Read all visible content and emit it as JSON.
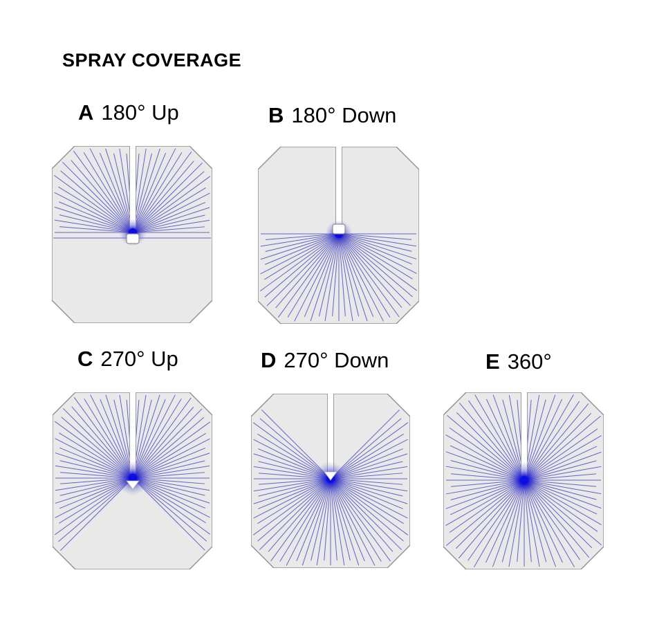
{
  "title": "SPRAY COVERAGE",
  "colors": {
    "spray_line": "#5353c4",
    "spray_core": "#0c0ce4",
    "panel_fill": "#e9e9e9",
    "panel_stroke": "#8f8f8f",
    "pipe_fill": "#ffffff",
    "pipe_stroke": "#9a9a9a",
    "text": "#000000"
  },
  "panels": [
    {
      "id": "A",
      "letter": "A",
      "caption": "180° Up",
      "coverage_deg": 180,
      "direction": "Up",
      "fan": {
        "start_deg": 0,
        "end_deg": 180,
        "step_deg": 4.5
      },
      "nozzle": "rounded-rect-below",
      "full_width_boundary_line": true
    },
    {
      "id": "B",
      "letter": "B",
      "caption": "180° Down",
      "coverage_deg": 180,
      "direction": "Down",
      "fan": {
        "start_deg": 180,
        "end_deg": 360,
        "step_deg": 4.5
      },
      "nozzle": "rounded-rect-above",
      "full_width_boundary_line": false
    },
    {
      "id": "C",
      "letter": "C",
      "caption": "270° Up",
      "coverage_deg": 270,
      "direction": "Up",
      "fan": {
        "start_deg": -45,
        "end_deg": 225,
        "step_deg": 4.5
      },
      "nozzle": "triangle-below",
      "full_width_boundary_line": false
    },
    {
      "id": "D",
      "letter": "D",
      "caption": "270° Down",
      "coverage_deg": 270,
      "direction": "Down",
      "fan": {
        "start_deg": 135,
        "end_deg": 405,
        "step_deg": 4.5
      },
      "nozzle": "triangle-tip",
      "full_width_boundary_line": false
    },
    {
      "id": "E",
      "letter": "E",
      "caption": "360°",
      "coverage_deg": 360,
      "direction": "All",
      "fan": {
        "start_deg": 0,
        "end_deg": 355,
        "step_deg": 5
      },
      "nozzle": "none",
      "full_width_boundary_line": false
    }
  ]
}
